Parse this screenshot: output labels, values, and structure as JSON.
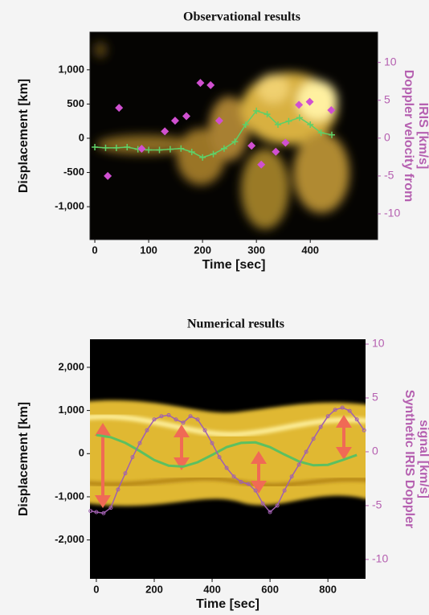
{
  "chart_data": [
    {
      "type": "scatter",
      "title": "Observational results",
      "xlabel": "Time [sec]",
      "ylabel": "Displacement [km]",
      "y2label": [
        "Doppler velocity from",
        "IRIS [km/s]"
      ],
      "xlim": [
        -9,
        525
      ],
      "xticks": [
        0,
        100,
        200,
        300,
        400
      ],
      "ylim": [
        -1480,
        1550
      ],
      "yticks": [
        {
          "value": 1000,
          "label": "1,000"
        },
        500,
        0,
        -500,
        {
          "value": -1000,
          "label": "-1,000"
        }
      ],
      "y2lim": [
        -13.4,
        14
      ],
      "y2ticks": [
        10,
        5,
        0,
        -5,
        -10
      ],
      "series": [
        {
          "color": "#5fd068",
          "mode": "line+markers",
          "marker": "plus",
          "x": [
            0,
            20,
            40,
            60,
            80,
            100,
            120,
            140,
            160,
            180,
            200,
            220,
            240,
            260,
            280,
            300,
            320,
            340,
            360,
            380,
            400,
            420,
            440
          ],
          "values": [
            -130,
            -140,
            -140,
            -130,
            -160,
            -170,
            -170,
            -160,
            -150,
            -200,
            -280,
            -230,
            -150,
            -50,
            200,
            400,
            350,
            200,
            250,
            300,
            200,
            80,
            50
          ]
        },
        {
          "color": "#d050d0",
          "mode": "markers",
          "marker": "diamond",
          "axis": "y2",
          "x": [
            24,
            45,
            87,
            130,
            149,
            170,
            196,
            215,
            231,
            291,
            309,
            336,
            354,
            379,
            399,
            439
          ],
          "values": [
            -5.0,
            4.0,
            -1.4,
            0.9,
            2.3,
            2.9,
            7.3,
            7.0,
            2.3,
            -1.0,
            -3.5,
            -1.8,
            -0.6,
            4.4,
            4.8,
            3.7
          ]
        }
      ]
    },
    {
      "type": "line",
      "title": "Numerical results",
      "xlabel": "Time [sec]",
      "ylabel": "Displacement [km]",
      "y2label": [
        "Synthetic IRIS Doppler",
        "signal [km/s]"
      ],
      "xlim": [
        -22,
        930
      ],
      "xticks": [
        0,
        200,
        400,
        600,
        800
      ],
      "ylim": [
        -2900,
        2650
      ],
      "yticks": [
        {
          "value": 2000,
          "label": "2,000"
        },
        {
          "value": 1000,
          "label": "1,000"
        },
        0,
        {
          "value": -1000,
          "label": "-1,000"
        },
        {
          "value": -2000,
          "label": "-2,000"
        }
      ],
      "y2lim": [
        -11.8,
        10.45
      ],
      "y2ticks": [
        10,
        5,
        0,
        -5,
        -10
      ],
      "series": [
        {
          "color": "#5cc060",
          "mode": "line",
          "x": [
            0,
            50,
            100,
            150,
            200,
            250,
            300,
            350,
            400,
            450,
            500,
            550,
            600,
            650,
            700,
            750,
            800,
            850,
            900
          ],
          "values": [
            430,
            380,
            250,
            60,
            -150,
            -280,
            -300,
            -200,
            -30,
            150,
            250,
            260,
            150,
            -20,
            -180,
            -270,
            -260,
            -150,
            -30
          ]
        },
        {
          "color": "#a060b0",
          "mode": "line+markers",
          "marker": "circle",
          "axis": "y2",
          "x": [
            -20,
            0,
            25,
            50,
            75,
            100,
            125,
            150,
            175,
            200,
            225,
            250,
            275,
            300,
            325,
            350,
            375,
            400,
            425,
            450,
            475,
            500,
            525,
            550,
            575,
            600,
            625,
            650,
            675,
            700,
            725,
            750,
            775,
            800,
            825,
            850,
            875,
            900,
            925
          ],
          "values": [
            -5.5,
            -5.6,
            -5.7,
            -5.2,
            -3.5,
            -2.0,
            -0.5,
            0.8,
            2.0,
            3.0,
            3.3,
            3.4,
            3.0,
            2.7,
            3.3,
            3.0,
            2.0,
            0.8,
            -0.5,
            -1.5,
            -2.3,
            -2.8,
            -3.0,
            -3.6,
            -4.8,
            -5.6,
            -5.0,
            -3.6,
            -2.3,
            -1.2,
            0,
            1.2,
            2.3,
            3.3,
            3.9,
            4.1,
            3.8,
            3.0,
            2.0
          ]
        }
      ]
    }
  ]
}
